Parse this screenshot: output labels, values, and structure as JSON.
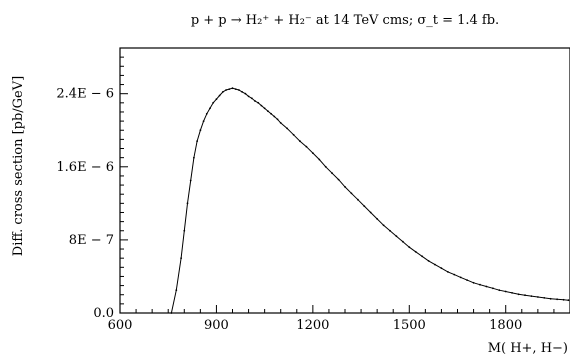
{
  "chart_data": {
    "type": "line",
    "title": "p + p → H₂⁺ + H₂⁻  at 14 TeV cms; σ_t = 1.4 fb.",
    "xlabel": "M( H+,  H−)",
    "ylabel": "Diff. cross section [pb/GeV]",
    "xlim": [
      600,
      2000
    ],
    "ylim": [
      0,
      2.9e-06
    ],
    "x_ticks": [
      600,
      900,
      1200,
      1500,
      1800
    ],
    "x_tick_labels": [
      "600",
      "900",
      "1200",
      "1500",
      "1800"
    ],
    "y_ticks": [
      0,
      8e-07,
      1.6e-06,
      2.4e-06
    ],
    "y_tick_labels": [
      "0.0",
      "8E − 7",
      "1.6E − 6",
      "2.4E − 6"
    ],
    "grid": false,
    "series": [
      {
        "x": [
          760,
          775,
          790,
          800,
          810,
          820,
          830,
          840,
          850,
          860,
          870,
          880,
          890,
          900,
          910,
          920,
          930,
          940,
          950,
          960,
          970,
          980,
          990,
          1000,
          1010,
          1020,
          1030,
          1040,
          1050,
          1060,
          1070,
          1080,
          1090,
          1100,
          1120,
          1140,
          1160,
          1180,
          1200,
          1220,
          1240,
          1260,
          1280,
          1300,
          1320,
          1340,
          1360,
          1380,
          1400,
          1420,
          1440,
          1460,
          1480,
          1500,
          1520,
          1540,
          1560,
          1580,
          1600,
          1620,
          1640,
          1660,
          1680,
          1700,
          1720,
          1740,
          1760,
          1780,
          1800,
          1820,
          1840,
          1860,
          1880,
          1900,
          1920,
          1940,
          1960,
          1980,
          1995
        ],
        "y": [
          0.0,
          2.5e-07,
          6e-07,
          9e-07,
          1.2e-06,
          1.45e-06,
          1.7e-06,
          1.88e-06,
          2e-06,
          2.1e-06,
          2.18e-06,
          2.24e-06,
          2.3e-06,
          2.34e-06,
          2.38e-06,
          2.42e-06,
          2.44e-06,
          2.45e-06,
          2.46e-06,
          2.45e-06,
          2.44e-06,
          2.42e-06,
          2.4e-06,
          2.37e-06,
          2.35e-06,
          2.32e-06,
          2.3e-06,
          2.27e-06,
          2.24e-06,
          2.21e-06,
          2.18e-06,
          2.15e-06,
          2.12e-06,
          2.08e-06,
          2.02e-06,
          1.95e-06,
          1.88e-06,
          1.82e-06,
          1.75e-06,
          1.68e-06,
          1.6e-06,
          1.53e-06,
          1.46e-06,
          1.38e-06,
          1.31e-06,
          1.24e-06,
          1.17e-06,
          1.1e-06,
          1.03e-06,
          9.6e-07,
          9e-07,
          8.4e-07,
          7.8e-07,
          7.2e-07,
          6.7e-07,
          6.2e-07,
          5.7e-07,
          5.3e-07,
          4.9e-07,
          4.5e-07,
          4.2e-07,
          3.9e-07,
          3.6e-07,
          3.3e-07,
          3.1e-07,
          2.9e-07,
          2.7e-07,
          2.5e-07,
          2.35e-07,
          2.2e-07,
          2.05e-07,
          1.95e-07,
          1.85e-07,
          1.75e-07,
          1.65e-07,
          1.55e-07,
          1.5e-07,
          1.45e-07,
          1.4e-07
        ]
      }
    ]
  }
}
